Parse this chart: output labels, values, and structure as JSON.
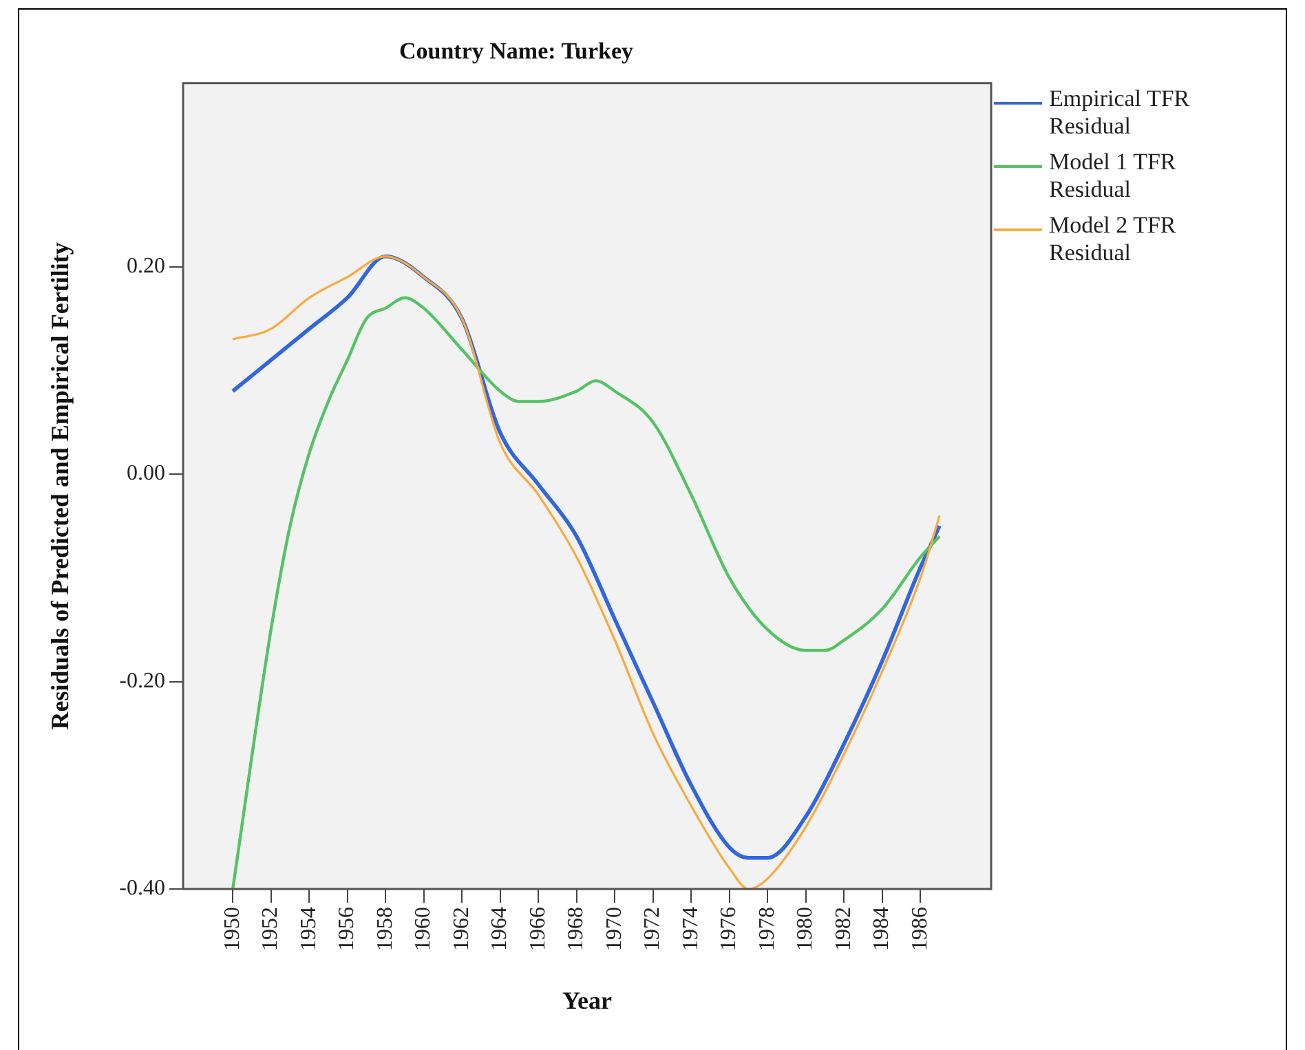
{
  "chart_data": {
    "type": "line",
    "title": "Country Name: Turkey",
    "xlabel": "Year",
    "ylabel": "Residuals of Predicted and Empirical Fertility",
    "xlim": [
      1947.4,
      1989.7
    ],
    "xticks": [
      1950,
      1952,
      1954,
      1956,
      1958,
      1960,
      1962,
      1964,
      1966,
      1968,
      1970,
      1972,
      1974,
      1976,
      1978,
      1980,
      1982,
      1984,
      1986
    ],
    "ylim": [
      -0.4,
      0.377
    ],
    "yticks": [
      {
        "value": -0.4,
        "label": "-0.40"
      },
      {
        "value": -0.2,
        "label": "-0.20"
      },
      {
        "value": 0,
        "label": "0.00"
      },
      {
        "value": 0.2,
        "label": "0.20"
      }
    ],
    "grid": false,
    "legend": "top right",
    "marker": "none",
    "line_style": "solid",
    "series": [
      {
        "name": "Empirical TFR Residual",
        "color": "#3366dd",
        "x": [
          1950,
          1952,
          1954,
          1956,
          1958,
          1960,
          1962,
          1964,
          1966,
          1968,
          1970,
          1972,
          1974,
          1976,
          1977,
          1978,
          1980,
          1982,
          1984,
          1986,
          1987
        ],
        "values": [
          0.08,
          0.11,
          0.14,
          0.17,
          0.21,
          0.19,
          0.15,
          0.04,
          -0.01,
          -0.06,
          -0.14,
          -0.22,
          -0.3,
          -0.36,
          -0.37,
          -0.37,
          -0.33,
          -0.26,
          -0.18,
          -0.09,
          -0.05
        ]
      },
      {
        "name": "Model 1 TFR Residual",
        "color": "#55c266",
        "x": [
          1950,
          1952,
          1953,
          1954,
          1955,
          1956,
          1957,
          1958,
          1959,
          1960,
          1962,
          1964,
          1965,
          1966,
          1968,
          1969,
          1970,
          1972,
          1974,
          1976,
          1978,
          1980,
          1981,
          1982,
          1984,
          1986,
          1987
        ],
        "values": [
          -0.4,
          -0.15,
          -0.05,
          0.02,
          0.07,
          0.11,
          0.15,
          0.16,
          0.17,
          0.16,
          0.12,
          0.08,
          0.07,
          0.07,
          0.08,
          0.09,
          0.08,
          0.05,
          -0.02,
          -0.1,
          -0.15,
          -0.17,
          -0.17,
          -0.16,
          -0.13,
          -0.08,
          -0.06
        ]
      },
      {
        "name": "Model 2 TFR Residual",
        "color": "#f9aa3c",
        "x": [
          1950,
          1952,
          1954,
          1956,
          1958,
          1960,
          1962,
          1964,
          1966,
          1968,
          1970,
          1972,
          1974,
          1976,
          1977,
          1978,
          1980,
          1982,
          1984,
          1986,
          1987
        ],
        "values": [
          0.13,
          0.14,
          0.17,
          0.19,
          0.21,
          0.19,
          0.15,
          0.03,
          -0.02,
          -0.08,
          -0.16,
          -0.25,
          -0.32,
          -0.38,
          -0.4,
          -0.39,
          -0.34,
          -0.27,
          -0.19,
          -0.1,
          -0.04
        ]
      }
    ]
  }
}
